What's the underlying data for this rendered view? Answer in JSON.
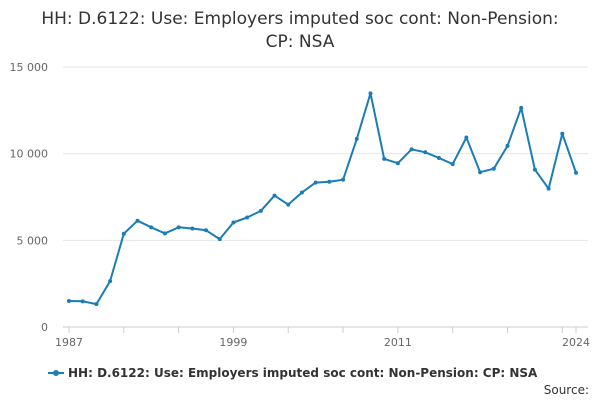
{
  "chart_data": {
    "type": "line",
    "title": "HH: D.6122: Use: Employers imputed soc cont: Non-Pension: CP: NSA",
    "xlabel": "",
    "ylabel": "",
    "ylim": [
      0,
      15000
    ],
    "xlim": [
      1987,
      2024
    ],
    "y_ticks": [
      0,
      5000,
      10000,
      15000
    ],
    "y_tick_labels": [
      "0",
      "5 000",
      "10 000",
      "15 000"
    ],
    "x_tick_labels": [
      "1987",
      "1999",
      "2011",
      "2024"
    ],
    "x_tick_values": [
      1987,
      1999,
      2011,
      2024
    ],
    "grid": "horizontal",
    "legend_position": "bottom",
    "series": [
      {
        "name": "HH: D.6122: Use: Employers imputed soc cont: Non-Pension: CP: NSA",
        "color": "#1a7db6",
        "x": [
          1987,
          1988,
          1989,
          1990,
          1991,
          1992,
          1993,
          1994,
          1995,
          1996,
          1997,
          1998,
          1999,
          2000,
          2001,
          2002,
          2003,
          2004,
          2005,
          2006,
          2007,
          2008,
          2009,
          2010,
          2011,
          2012,
          2013,
          2014,
          2015,
          2016,
          2017,
          2018,
          2019,
          2020,
          2021,
          2022,
          2023,
          2024
        ],
        "values": [
          1500,
          1480,
          1320,
          2650,
          5380,
          6130,
          5750,
          5400,
          5750,
          5680,
          5580,
          5070,
          6030,
          6320,
          6700,
          7580,
          7060,
          7760,
          8330,
          8380,
          8500,
          10850,
          13480,
          9700,
          9450,
          10250,
          10080,
          9750,
          9400,
          10930,
          8930,
          9130,
          10450,
          12640,
          9080,
          7980,
          11150,
          8900
        ]
      }
    ]
  },
  "source_label": "Source:"
}
